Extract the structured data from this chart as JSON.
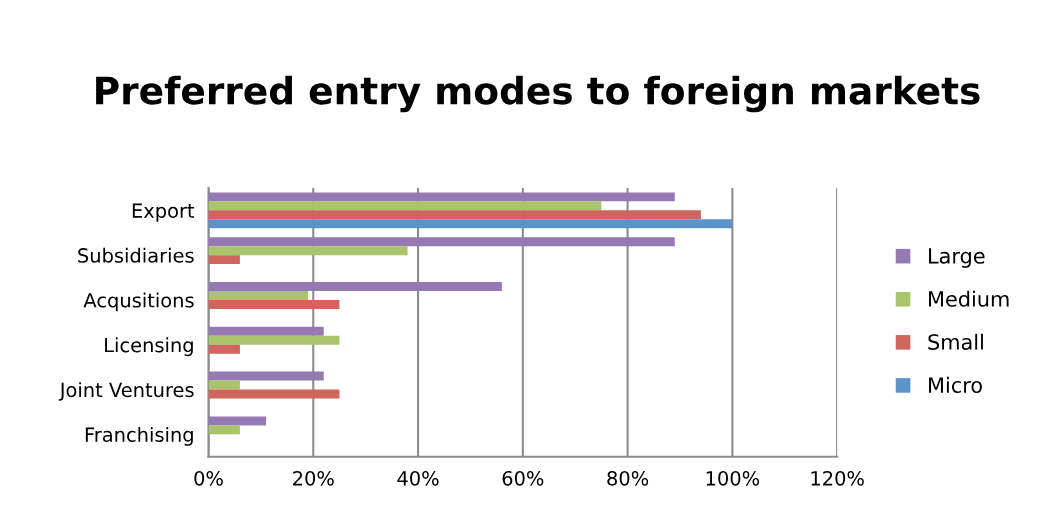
{
  "chart_data": {
    "type": "bar",
    "orientation": "horizontal",
    "title": "Preferred entry modes to foreign markets",
    "categories": [
      "Export",
      "Subsidiaries",
      "Acqusitions",
      "Licensing",
      "Joint Ventures",
      "Franchising"
    ],
    "series": [
      {
        "name": "Large",
        "color": "#9479b2",
        "values": [
          89,
          89,
          56,
          22,
          22,
          11
        ]
      },
      {
        "name": "Medium",
        "color": "#a9c46b",
        "values": [
          75,
          38,
          19,
          25,
          6,
          6
        ]
      },
      {
        "name": "Small",
        "color": "#d0655e",
        "values": [
          94,
          6,
          25,
          6,
          25,
          0
        ]
      },
      {
        "name": "Micro",
        "color": "#5b94c9",
        "values": [
          100,
          0,
          0,
          0,
          0,
          0
        ]
      }
    ],
    "xlim": [
      0,
      120
    ],
    "xticks": [
      {
        "value": 0,
        "label": "0%"
      },
      {
        "value": 20,
        "label": "20%"
      },
      {
        "value": 40,
        "label": "40%"
      },
      {
        "value": 60,
        "label": "60%"
      },
      {
        "value": 80,
        "label": "80%"
      },
      {
        "value": 100,
        "label": "100%"
      },
      {
        "value": 120,
        "label": "120%"
      }
    ],
    "grid": "x",
    "legend": "right"
  }
}
